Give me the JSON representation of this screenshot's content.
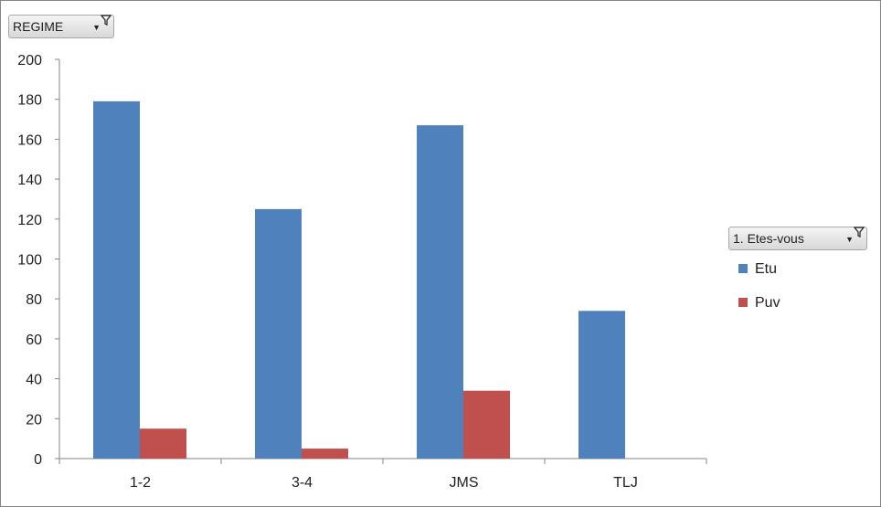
{
  "filters": {
    "regime_label": "REGIME",
    "legend_field_label": "1. Etes-vous"
  },
  "colors": {
    "Etu": "#4f81bd",
    "Puv": "#c0504d",
    "axis": "#868686"
  },
  "chart_data": {
    "type": "bar",
    "categories": [
      "1-2",
      "3-4",
      "JMS",
      "TLJ"
    ],
    "series": [
      {
        "name": "Etu",
        "values": [
          179,
          125,
          167,
          74
        ]
      },
      {
        "name": "Puv",
        "values": [
          15,
          5,
          34,
          0
        ]
      }
    ],
    "ylim": [
      0,
      200
    ],
    "yticks": [
      0,
      20,
      40,
      60,
      80,
      100,
      120,
      140,
      160,
      180,
      200
    ],
    "grid": false,
    "legend_position": "right"
  }
}
